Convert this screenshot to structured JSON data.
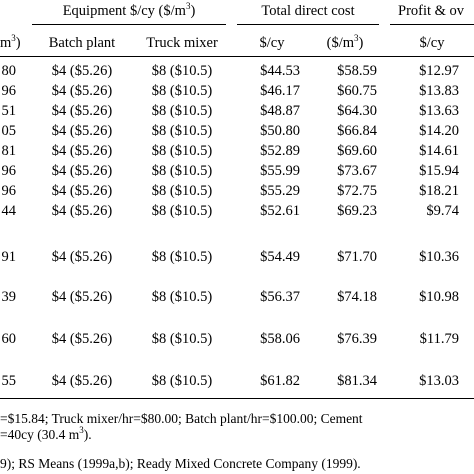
{
  "header": {
    "left_fragment": "m",
    "left_fragment_sup": "3",
    "left_fragment_close": ")",
    "equipment_group": "Equipment $/cy ($/m",
    "equipment_group_sup": "3",
    "equipment_group_close": ")",
    "total_group": "Total direct cost",
    "profit_group": "Profit & ov",
    "batch_plant": "Batch plant",
    "truck_mixer": "Truck mixer",
    "total_cy": "$/cy",
    "total_m3": "($/m",
    "total_m3_sup": "3",
    "total_m3_close": ")",
    "profit_cy": "$/cy"
  },
  "rows": [
    {
      "c0": "80",
      "bp": "$4 ($5.26)",
      "tm": "$8 ($10.5)",
      "tcy": "$44.53",
      "tm3": "$58.59",
      "pcy": "$12.97"
    },
    {
      "c0": "96",
      "bp": "$4 ($5.26)",
      "tm": "$8 ($10.5)",
      "tcy": "$46.17",
      "tm3": "$60.75",
      "pcy": "$13.83"
    },
    {
      "c0": "51",
      "bp": "$4 ($5.26)",
      "tm": "$8 ($10.5)",
      "tcy": "$48.87",
      "tm3": "$64.30",
      "pcy": "$13.63"
    },
    {
      "c0": "05",
      "bp": "$4 ($5.26)",
      "tm": "$8 ($10.5)",
      "tcy": "$50.80",
      "tm3": "$66.84",
      "pcy": "$14.20"
    },
    {
      "c0": "81",
      "bp": "$4 ($5.26)",
      "tm": "$8 ($10.5)",
      "tcy": "$52.89",
      "tm3": "$69.60",
      "pcy": "$14.61"
    },
    {
      "c0": "96",
      "bp": "$4 ($5.26)",
      "tm": "$8 ($10.5)",
      "tcy": "$55.99",
      "tm3": "$73.67",
      "pcy": "$15.94"
    },
    {
      "c0": "96",
      "bp": "$4 ($5.26)",
      "tm": "$8 ($10.5)",
      "tcy": "$55.29",
      "tm3": "$72.75",
      "pcy": "$18.21"
    },
    {
      "c0": "44",
      "bp": "$4 ($5.26)",
      "tm": "$8 ($10.5)",
      "tcy": "$52.61",
      "tm3": "$69.23",
      "pcy": "$9.74"
    },
    {
      "c0": "91",
      "bp": "$4 ($5.26)",
      "tm": "$8 ($10.5)",
      "tcy": "$54.49",
      "tm3": "$71.70",
      "pcy": "$10.36"
    },
    {
      "c0": "39",
      "bp": "$4 ($5.26)",
      "tm": "$8 ($10.5)",
      "tcy": "$56.37",
      "tm3": "$74.18",
      "pcy": "$10.98"
    },
    {
      "c0": "60",
      "bp": "$4 ($5.26)",
      "tm": "$8 ($10.5)",
      "tcy": "$58.06",
      "tm3": "$76.39",
      "pcy": "$11.79"
    },
    {
      "c0": "55",
      "bp": "$4 ($5.26)",
      "tm": "$8 ($10.5)",
      "tcy": "$61.82",
      "tm3": "$81.34",
      "pcy": "$13.03"
    }
  ],
  "footnotes": {
    "line1": "=$15.84; Truck mixer/hr=$80.00; Batch plant/hr=$100.00; Cement",
    "line2": "=40cy (30.4 m",
    "line2_sup": "3",
    "line2_close": ").",
    "line3": "9); RS Means (1999a,b); Ready Mixed Concrete Company (1999)."
  }
}
